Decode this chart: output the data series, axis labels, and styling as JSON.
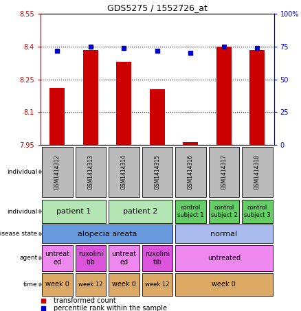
{
  "title": "GDS5275 / 1552726_at",
  "samples": [
    "GSM1414312",
    "GSM1414313",
    "GSM1414314",
    "GSM1414315",
    "GSM1414316",
    "GSM1414317",
    "GSM1414318"
  ],
  "transformed_counts": [
    8.21,
    8.385,
    8.33,
    8.205,
    7.962,
    8.4,
    8.385
  ],
  "percentile_ranks": [
    72,
    75,
    74,
    72,
    70,
    75,
    74
  ],
  "ylim_left": [
    7.95,
    8.55
  ],
  "ylim_right": [
    0,
    100
  ],
  "yticks_left": [
    7.95,
    8.1,
    8.25,
    8.4,
    8.55
  ],
  "yticks_right": [
    0,
    25,
    50,
    75,
    100
  ],
  "ytick_labels_left": [
    "7.95",
    "8.1",
    "8.25",
    "8.4",
    "8.55"
  ],
  "ytick_labels_right": [
    "0",
    "25",
    "50",
    "75",
    "100%"
  ],
  "bar_color": "#cc0000",
  "dot_color": "#0000cc",
  "bar_bottom": 7.95,
  "hlines": [
    8.1,
    8.25,
    8.4
  ],
  "annotation_rows": [
    {
      "label": "individual",
      "cells": [
        {
          "text": "patient 1",
          "span": [
            0,
            2
          ],
          "color": "#b3e6b3",
          "fontsize": 8
        },
        {
          "text": "patient 2",
          "span": [
            2,
            4
          ],
          "color": "#b3e6b3",
          "fontsize": 8
        },
        {
          "text": "control\nsubject 1",
          "span": [
            4,
            5
          ],
          "color": "#66cc66",
          "fontsize": 6
        },
        {
          "text": "control\nsubject 2",
          "span": [
            5,
            6
          ],
          "color": "#66cc66",
          "fontsize": 6
        },
        {
          "text": "control\nsubject 3",
          "span": [
            6,
            7
          ],
          "color": "#66cc66",
          "fontsize": 6
        }
      ]
    },
    {
      "label": "disease state",
      "cells": [
        {
          "text": "alopecia areata",
          "span": [
            0,
            4
          ],
          "color": "#6699dd",
          "fontsize": 8
        },
        {
          "text": "normal",
          "span": [
            4,
            7
          ],
          "color": "#aabbee",
          "fontsize": 8
        }
      ]
    },
    {
      "label": "agent",
      "cells": [
        {
          "text": "untreat\ned",
          "span": [
            0,
            1
          ],
          "color": "#ee88ee",
          "fontsize": 7
        },
        {
          "text": "ruxolini\ntib",
          "span": [
            1,
            2
          ],
          "color": "#dd55dd",
          "fontsize": 7
        },
        {
          "text": "untreat\ned",
          "span": [
            2,
            3
          ],
          "color": "#ee88ee",
          "fontsize": 7
        },
        {
          "text": "ruxolini\ntib",
          "span": [
            3,
            4
          ],
          "color": "#dd55dd",
          "fontsize": 7
        },
        {
          "text": "untreated",
          "span": [
            4,
            7
          ],
          "color": "#ee88ee",
          "fontsize": 7
        }
      ]
    },
    {
      "label": "time",
      "cells": [
        {
          "text": "week 0",
          "span": [
            0,
            1
          ],
          "color": "#ddaa66",
          "fontsize": 7
        },
        {
          "text": "week 12",
          "span": [
            1,
            2
          ],
          "color": "#ddaa66",
          "fontsize": 6
        },
        {
          "text": "week 0",
          "span": [
            2,
            3
          ],
          "color": "#ddaa66",
          "fontsize": 7
        },
        {
          "text": "week 12",
          "span": [
            3,
            4
          ],
          "color": "#ddaa66",
          "fontsize": 6
        },
        {
          "text": "week 0",
          "span": [
            4,
            7
          ],
          "color": "#ddaa66",
          "fontsize": 7
        }
      ]
    }
  ],
  "sample_box_color": "#bbbbbb",
  "axis_left_color": "#cc0000",
  "axis_right_color": "#0000cc",
  "fig_width": 4.38,
  "fig_height": 4.53,
  "dpi": 100
}
